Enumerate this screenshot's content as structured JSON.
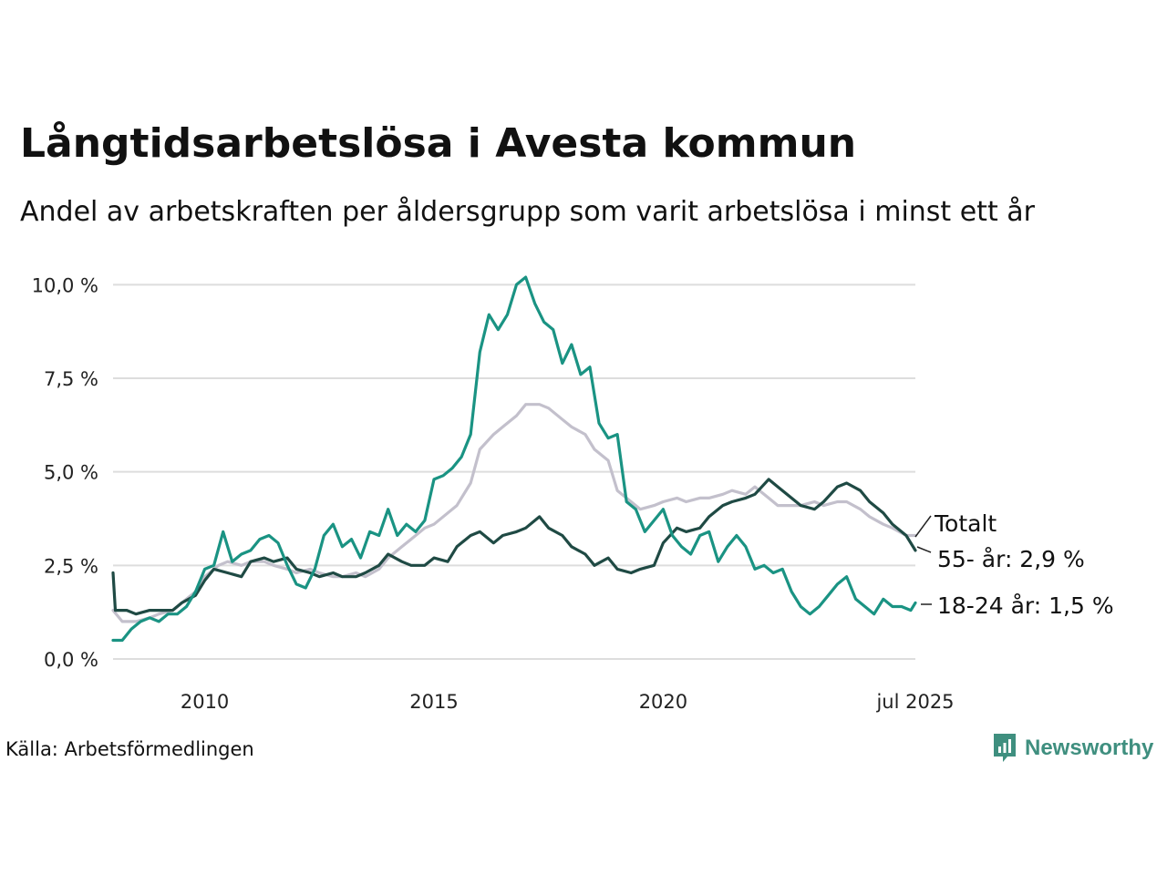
{
  "title": "Långtidsarbetslösa i Avesta kommun",
  "subtitle": "Andel av arbetskraften per åldersgrupp som varit arbetslösa i minst ett år",
  "source": "Källa: Arbetsförmedlingen",
  "brand": "Newsworthy",
  "colors": {
    "total": "#c3c0cc",
    "age55": "#1f4a44",
    "age18_24": "#1a9383",
    "grid": "#dddddd",
    "brand": "#3f8f7f"
  },
  "chart_data": {
    "type": "line",
    "title": "Långtidsarbetslösa i Avesta kommun",
    "subtitle": "Andel av arbetskraften per åldersgrupp som varit arbetslösa i minst ett år",
    "xlabel": "",
    "ylabel": "",
    "x_range": [
      2008.0,
      2025.5
    ],
    "ylim": [
      0,
      10.3
    ],
    "x_ticks": [
      {
        "value": 2010,
        "label": "2010"
      },
      {
        "value": 2015,
        "label": "2015"
      },
      {
        "value": 2020,
        "label": "2020"
      },
      {
        "value": 2025.5,
        "label": "jul 2025"
      }
    ],
    "y_ticks": [
      {
        "value": 0,
        "label": "0,0 %"
      },
      {
        "value": 2.5,
        "label": "2,5 %"
      },
      {
        "value": 5,
        "label": "5,0 %"
      },
      {
        "value": 7.5,
        "label": "7,5 %"
      },
      {
        "value": 10,
        "label": "10,0 %"
      }
    ],
    "grid": true,
    "series": [
      {
        "name": "Totalt",
        "key": "total",
        "end_label": "Totalt",
        "x": [
          2008.0,
          2008.2,
          2008.5,
          2008.8,
          2009.0,
          2009.3,
          2009.5,
          2009.8,
          2010.0,
          2010.3,
          2010.5,
          2010.8,
          2011.0,
          2011.3,
          2011.5,
          2011.8,
          2012.0,
          2012.3,
          2012.5,
          2012.8,
          2013.0,
          2013.3,
          2013.5,
          2013.8,
          2014.0,
          2014.3,
          2014.5,
          2014.8,
          2015.0,
          2015.3,
          2015.5,
          2015.8,
          2016.0,
          2016.3,
          2016.5,
          2016.8,
          2017.0,
          2017.3,
          2017.5,
          2017.8,
          2018.0,
          2018.3,
          2018.5,
          2018.8,
          2019.0,
          2019.3,
          2019.5,
          2019.8,
          2020.0,
          2020.3,
          2020.5,
          2020.8,
          2021.0,
          2021.3,
          2021.5,
          2021.8,
          2022.0,
          2022.3,
          2022.5,
          2022.8,
          2023.0,
          2023.3,
          2023.5,
          2023.8,
          2024.0,
          2024.3,
          2024.5,
          2024.8,
          2025.0,
          2025.3,
          2025.5
        ],
        "values": [
          1.3,
          1.0,
          1.0,
          1.1,
          1.2,
          1.3,
          1.5,
          1.8,
          2.2,
          2.5,
          2.6,
          2.5,
          2.6,
          2.6,
          2.5,
          2.4,
          2.3,
          2.4,
          2.3,
          2.2,
          2.2,
          2.3,
          2.2,
          2.4,
          2.7,
          3.0,
          3.2,
          3.5,
          3.6,
          3.9,
          4.1,
          4.7,
          5.6,
          6.0,
          6.2,
          6.5,
          6.8,
          6.8,
          6.7,
          6.4,
          6.2,
          6.0,
          5.6,
          5.3,
          4.5,
          4.2,
          4.0,
          4.1,
          4.2,
          4.3,
          4.2,
          4.3,
          4.3,
          4.4,
          4.5,
          4.4,
          4.6,
          4.3,
          4.1,
          4.1,
          4.1,
          4.2,
          4.1,
          4.2,
          4.2,
          4.0,
          3.8,
          3.6,
          3.5,
          3.3,
          3.3
        ]
      },
      {
        "name": "55- år",
        "key": "age55",
        "end_label": "55- år: 2,9 %",
        "x": [
          2008.0,
          2008.05,
          2008.3,
          2008.5,
          2008.8,
          2009.0,
          2009.3,
          2009.5,
          2009.8,
          2010.0,
          2010.2,
          2010.5,
          2010.8,
          2011.0,
          2011.3,
          2011.5,
          2011.8,
          2012.0,
          2012.3,
          2012.5,
          2012.8,
          2013.0,
          2013.3,
          2013.5,
          2013.8,
          2014.0,
          2014.3,
          2014.5,
          2014.8,
          2015.0,
          2015.3,
          2015.5,
          2015.8,
          2016.0,
          2016.3,
          2016.5,
          2016.8,
          2017.0,
          2017.3,
          2017.5,
          2017.8,
          2018.0,
          2018.3,
          2018.5,
          2018.8,
          2019.0,
          2019.3,
          2019.5,
          2019.8,
          2020.0,
          2020.3,
          2020.5,
          2020.8,
          2021.0,
          2021.3,
          2021.5,
          2021.8,
          2022.0,
          2022.3,
          2022.5,
          2022.8,
          2023.0,
          2023.3,
          2023.5,
          2023.8,
          2024.0,
          2024.3,
          2024.5,
          2024.8,
          2025.0,
          2025.3,
          2025.5
        ],
        "values": [
          2.3,
          1.3,
          1.3,
          1.2,
          1.3,
          1.3,
          1.3,
          1.5,
          1.7,
          2.1,
          2.4,
          2.3,
          2.2,
          2.6,
          2.7,
          2.6,
          2.7,
          2.4,
          2.3,
          2.2,
          2.3,
          2.2,
          2.2,
          2.3,
          2.5,
          2.8,
          2.6,
          2.5,
          2.5,
          2.7,
          2.6,
          3.0,
          3.3,
          3.4,
          3.1,
          3.3,
          3.4,
          3.5,
          3.8,
          3.5,
          3.3,
          3.0,
          2.8,
          2.5,
          2.7,
          2.4,
          2.3,
          2.4,
          2.5,
          3.1,
          3.5,
          3.4,
          3.5,
          3.8,
          4.1,
          4.2,
          4.3,
          4.4,
          4.8,
          4.6,
          4.3,
          4.1,
          4.0,
          4.2,
          4.6,
          4.7,
          4.5,
          4.2,
          3.9,
          3.6,
          3.3,
          2.9
        ]
      },
      {
        "name": "18-24 år",
        "key": "age18_24",
        "end_label": "18-24 år: 1,5 %",
        "x": [
          2008.0,
          2008.2,
          2008.4,
          2008.6,
          2008.8,
          2009.0,
          2009.2,
          2009.4,
          2009.6,
          2009.8,
          2010.0,
          2010.2,
          2010.4,
          2010.6,
          2010.8,
          2011.0,
          2011.2,
          2011.4,
          2011.6,
          2011.8,
          2012.0,
          2012.2,
          2012.4,
          2012.6,
          2012.8,
          2013.0,
          2013.2,
          2013.4,
          2013.6,
          2013.8,
          2014.0,
          2014.2,
          2014.4,
          2014.6,
          2014.8,
          2015.0,
          2015.2,
          2015.4,
          2015.6,
          2015.8,
          2016.0,
          2016.2,
          2016.4,
          2016.6,
          2016.8,
          2017.0,
          2017.2,
          2017.4,
          2017.6,
          2017.8,
          2018.0,
          2018.2,
          2018.4,
          2018.6,
          2018.8,
          2019.0,
          2019.2,
          2019.4,
          2019.6,
          2019.8,
          2020.0,
          2020.2,
          2020.4,
          2020.6,
          2020.8,
          2021.0,
          2021.2,
          2021.4,
          2021.6,
          2021.8,
          2022.0,
          2022.2,
          2022.4,
          2022.6,
          2022.8,
          2023.0,
          2023.2,
          2023.4,
          2023.6,
          2023.8,
          2024.0,
          2024.2,
          2024.4,
          2024.6,
          2024.8,
          2025.0,
          2025.2,
          2025.4,
          2025.5
        ],
        "values": [
          0.5,
          0.5,
          0.8,
          1.0,
          1.1,
          1.0,
          1.2,
          1.2,
          1.4,
          1.8,
          2.4,
          2.5,
          3.4,
          2.6,
          2.8,
          2.9,
          3.2,
          3.3,
          3.1,
          2.5,
          2.0,
          1.9,
          2.4,
          3.3,
          3.6,
          3.0,
          3.2,
          2.7,
          3.4,
          3.3,
          4.0,
          3.3,
          3.6,
          3.4,
          3.7,
          4.8,
          4.9,
          5.1,
          5.4,
          6.0,
          8.2,
          9.2,
          8.8,
          9.2,
          10.0,
          10.2,
          9.5,
          9.0,
          8.8,
          7.9,
          8.4,
          7.6,
          7.8,
          6.3,
          5.9,
          6.0,
          4.2,
          4.0,
          3.4,
          3.7,
          4.0,
          3.3,
          3.0,
          2.8,
          3.3,
          3.4,
          2.6,
          3.0,
          3.3,
          3.0,
          2.4,
          2.5,
          2.3,
          2.4,
          1.8,
          1.4,
          1.2,
          1.4,
          1.7,
          2.0,
          2.2,
          1.6,
          1.4,
          1.2,
          1.6,
          1.4,
          1.4,
          1.3,
          1.5
        ]
      }
    ]
  }
}
